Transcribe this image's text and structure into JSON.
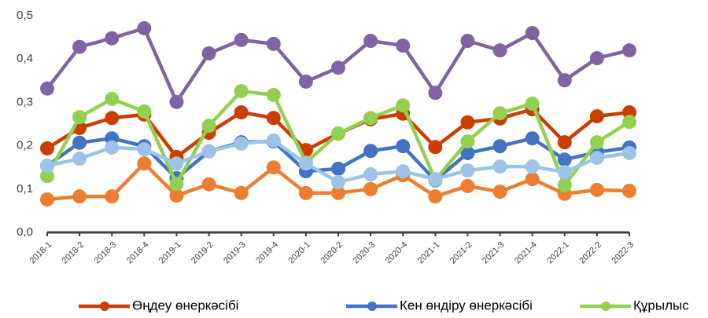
{
  "chart_data": {
    "type": "line",
    "categories": [
      "2018-1",
      "2018-2",
      "2018-3",
      "2018-4",
      "2019-1",
      "2019-2",
      "2019-3",
      "2019-4",
      "2020-1",
      "2020-2",
      "2020-3",
      "2020-4",
      "2021-1",
      "2021-2",
      "2021-3",
      "2021-4",
      "2022-1",
      "2022-2",
      "2022-3"
    ],
    "series": [
      {
        "color": "#8064a2",
        "values": [
          0.332,
          0.428,
          0.448,
          0.471,
          0.301,
          0.413,
          0.444,
          0.435,
          0.348,
          0.38,
          0.442,
          0.431,
          0.322,
          0.442,
          0.42,
          0.46,
          0.351,
          0.402,
          0.42
        ]
      },
      {
        "color": "#ed7d31",
        "values": [
          0.076,
          0.083,
          0.083,
          0.159,
          0.085,
          0.111,
          0.091,
          0.15,
          0.091,
          0.091,
          0.1,
          0.132,
          0.083,
          0.107,
          0.094,
          0.123,
          0.089,
          0.098,
          0.096
        ]
      },
      {
        "name": "Өңдеу өнеркәсібі",
        "color": "#cc3d00",
        "values": [
          0.194,
          0.241,
          0.264,
          0.272,
          0.174,
          0.23,
          0.277,
          0.264,
          0.19,
          0.228,
          0.261,
          0.274,
          0.197,
          0.254,
          0.263,
          0.284,
          0.208,
          0.268,
          0.277
        ]
      },
      {
        "name": "Кен өндіру өнеркәсібі",
        "color": "#4472c4",
        "values": [
          0.154,
          0.207,
          0.217,
          0.199,
          0.125,
          0.187,
          0.208,
          0.21,
          0.141,
          0.147,
          0.188,
          0.199,
          0.12,
          0.183,
          0.199,
          0.217,
          0.168,
          0.185,
          0.196
        ]
      },
      {
        "name": "Құрылыс",
        "color": "#92d050",
        "values": [
          0.13,
          0.266,
          0.308,
          0.279,
          0.112,
          0.246,
          0.326,
          0.317,
          0.161,
          0.228,
          0.264,
          0.293,
          0.121,
          0.21,
          0.275,
          0.297,
          0.109,
          0.208,
          0.255
        ]
      },
      {
        "color": "#9dc3e6",
        "values": [
          0.154,
          0.17,
          0.196,
          0.192,
          0.159,
          0.187,
          0.205,
          0.212,
          0.159,
          0.116,
          0.134,
          0.141,
          0.123,
          0.143,
          0.152,
          0.152,
          0.139,
          0.172,
          0.183
        ]
      }
    ],
    "ylim": [
      0,
      0.5
    ],
    "yticks": [
      {
        "value": 0,
        "label": "0,0"
      },
      {
        "value": 0.1,
        "label": "0,1"
      },
      {
        "value": 0.2,
        "label": "0,2"
      },
      {
        "value": 0.3,
        "label": "0,3"
      },
      {
        "value": 0.4,
        "label": "0,4"
      },
      {
        "value": 0.5,
        "label": "0,5"
      }
    ],
    "grid": false
  }
}
